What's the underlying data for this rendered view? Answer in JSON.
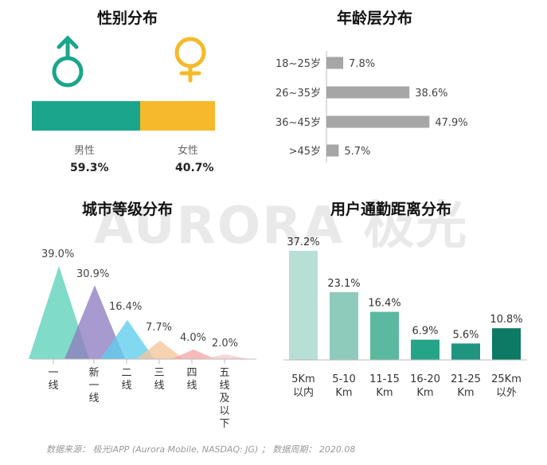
{
  "watermark": "AURORA 极光",
  "footer": "数据来源： 极光iAPP (Aurora Mobile, NASDAQ: JG) ； 数据周期： 2020.08",
  "colors": {
    "teal": "#1aa58c",
    "yellow": "#f6b92b",
    "gray_bar": "#a6a6a6",
    "axis": "#bbbbbb"
  },
  "chart_data": [
    {
      "type": "bar",
      "title": "性别分布",
      "orientation": "stacked-horizontal",
      "categories": [
        "男性",
        "女性"
      ],
      "values": [
        59.3,
        40.7
      ],
      "value_labels": [
        "59.3%",
        "40.7%"
      ],
      "colors": [
        "#1aa58c",
        "#f6b92b"
      ],
      "icons": [
        "male-symbol-icon",
        "female-symbol-icon"
      ]
    },
    {
      "type": "bar",
      "title": "年龄层分布",
      "orientation": "horizontal",
      "categories": [
        "18~25岁",
        "26~35岁",
        "36~45岁",
        ">45岁"
      ],
      "values": [
        7.8,
        38.6,
        47.9,
        5.7
      ],
      "value_labels": [
        "7.8%",
        "38.6%",
        "47.9%",
        "5.7%"
      ],
      "xlim": [
        0,
        50
      ],
      "color": "#a6a6a6"
    },
    {
      "type": "area",
      "title": "城市等级分布",
      "style": "overlapping-triangles",
      "categories": [
        "一线",
        "新一线",
        "二线",
        "三线",
        "四线",
        "五线及以下"
      ],
      "values": [
        39.0,
        30.9,
        16.4,
        7.7,
        4.0,
        2.0
      ],
      "value_labels": [
        "39.0%",
        "30.9%",
        "16.4%",
        "7.7%",
        "4.0%",
        "2.0%"
      ],
      "ylim": [
        0,
        40
      ],
      "colors": [
        "#5cd1b8",
        "#8e7ec0",
        "#5fcdec",
        "#f5c59a",
        "#f4a7a7",
        "#f3cccc"
      ]
    },
    {
      "type": "bar",
      "title": "用户通勤距离分布",
      "categories": [
        "5Km 以内",
        "5-10 Km",
        "11-15 Km",
        "16-20 Km",
        "21-25 Km",
        "25Km 以外"
      ],
      "values": [
        37.2,
        23.1,
        16.4,
        6.9,
        5.6,
        10.8
      ],
      "value_labels": [
        "37.2%",
        "23.1%",
        "16.4%",
        "6.9%",
        "5.6%",
        "10.8%"
      ],
      "ylim": [
        0,
        40
      ],
      "colors": [
        "#b7dfd3",
        "#8fcbba",
        "#5bb9a0",
        "#26a488",
        "#1f9580",
        "#0d7a65"
      ]
    }
  ]
}
